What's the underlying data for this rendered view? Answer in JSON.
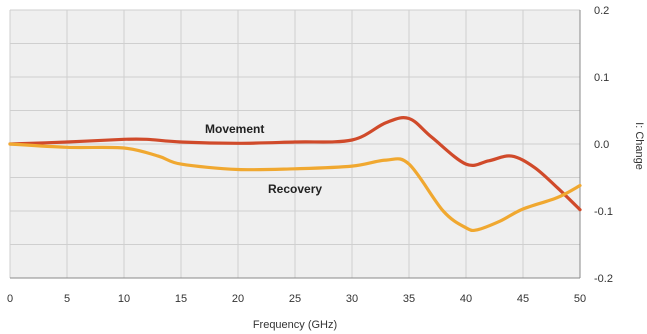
{
  "chart_data": {
    "type": "line",
    "title": "",
    "xlabel": "Frequency (GHz)",
    "ylabel": "I: Change",
    "xlim": [
      0,
      50
    ],
    "ylim": [
      -0.2,
      0.2
    ],
    "x_ticks": [
      0,
      5,
      10,
      15,
      20,
      25,
      30,
      35,
      40,
      45,
      50
    ],
    "x_tick_labels": [
      "0",
      "5",
      "10",
      "15",
      "20",
      "25",
      "30",
      "35",
      "40",
      "45",
      "50"
    ],
    "y_ticks": [
      0.2,
      0.1,
      0.0,
      -0.1,
      -0.2
    ],
    "y_tick_labels": [
      "0.2",
      "0.1",
      "0.0",
      "-0.1",
      "-0.2"
    ],
    "y_axis_side": "right",
    "grid": true,
    "background": "#efefef",
    "series": [
      {
        "name": "Movement",
        "color": "#d04a2a",
        "x": [
          0,
          5,
          10,
          12,
          15,
          20,
          25,
          30,
          33,
          35,
          37,
          40,
          42,
          44,
          46,
          48,
          50
        ],
        "y": [
          0.0,
          0.003,
          0.007,
          0.007,
          0.003,
          0.001,
          0.003,
          0.006,
          0.032,
          0.038,
          0.01,
          -0.03,
          -0.025,
          -0.018,
          -0.035,
          -0.065,
          -0.098
        ]
      },
      {
        "name": "Recovery",
        "color": "#f0a830",
        "x": [
          0,
          5,
          10,
          13,
          15,
          20,
          25,
          30,
          33,
          35,
          38,
          40,
          41,
          43,
          45,
          48,
          50
        ],
        "y": [
          0.0,
          -0.005,
          -0.006,
          -0.018,
          -0.03,
          -0.038,
          -0.037,
          -0.033,
          -0.024,
          -0.03,
          -0.1,
          -0.125,
          -0.128,
          -0.115,
          -0.097,
          -0.08,
          -0.062
        ]
      }
    ]
  }
}
